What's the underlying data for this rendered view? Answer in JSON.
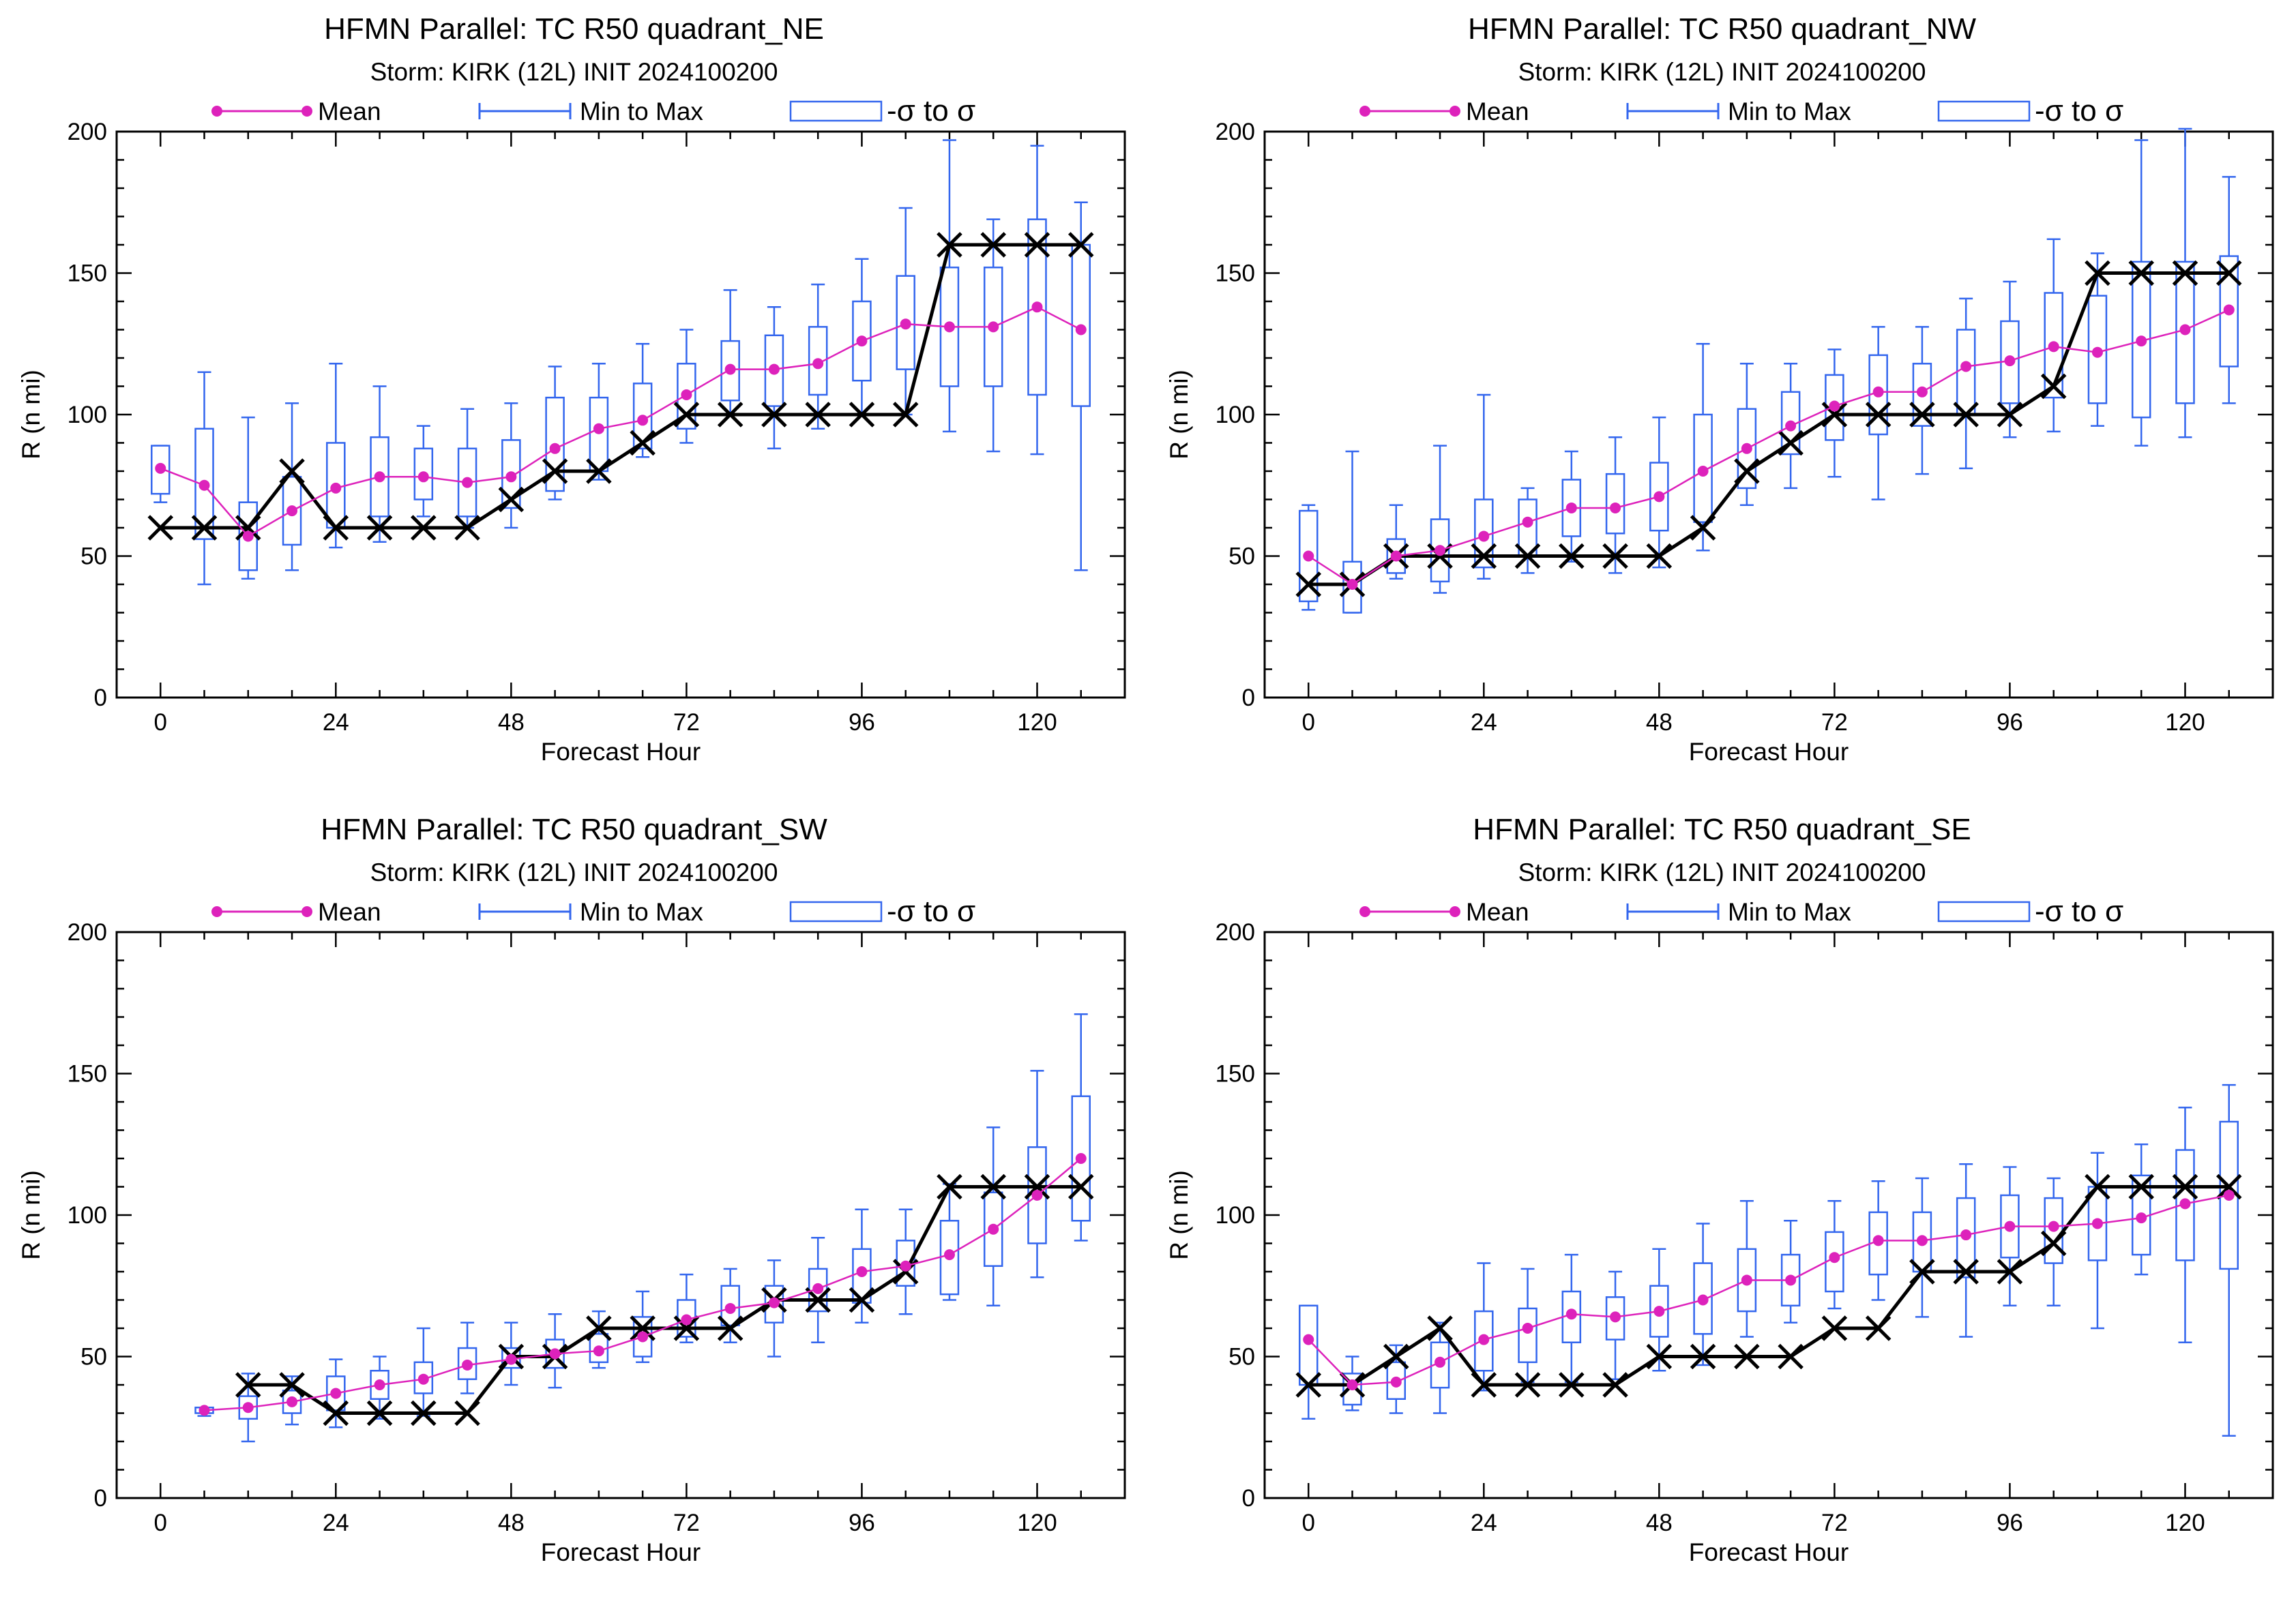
{
  "legend": {
    "mean": "Mean",
    "range": "Min to Max",
    "sigma": "-σ to σ"
  },
  "colors": {
    "mean": "#dd22bb",
    "range": "#3366ee",
    "official": "#000000",
    "axis": "#000000"
  },
  "chart_data": [
    {
      "type": "box",
      "title": "HFMN Parallel: TC  R50 quadrant_NE",
      "subtitle": "Storm: KIRK (12L) INIT 2024100200",
      "xlabel": "Forecast Hour",
      "ylabel": "R (n mi)",
      "xlim": [
        -6,
        132
      ],
      "ylim": [
        0,
        200
      ],
      "xticks": [
        0,
        24,
        48,
        72,
        96,
        120
      ],
      "yticks": [
        0,
        50,
        100,
        150,
        200
      ],
      "x": [
        0,
        6,
        12,
        18,
        24,
        30,
        36,
        42,
        48,
        54,
        60,
        66,
        72,
        78,
        84,
        90,
        96,
        102,
        108,
        114,
        120,
        126
      ],
      "mean": [
        81,
        75,
        57,
        66,
        74,
        78,
        78,
        76,
        78,
        88,
        95,
        98,
        107,
        116,
        116,
        118,
        126,
        132,
        131,
        131,
        138,
        130
      ],
      "min": [
        69,
        40,
        42,
        45,
        53,
        55,
        64,
        60,
        60,
        70,
        77,
        85,
        90,
        100,
        88,
        95,
        100,
        100,
        94,
        87,
        86,
        45
      ],
      "max": [
        89,
        115,
        99,
        104,
        118,
        110,
        96,
        102,
        104,
        117,
        118,
        125,
        130,
        144,
        138,
        146,
        155,
        173,
        197,
        169,
        195,
        175
      ],
      "sd_low": [
        72,
        56,
        45,
        54,
        60,
        64,
        70,
        64,
        67,
        73,
        80,
        88,
        95,
        105,
        103,
        107,
        112,
        116,
        110,
        110,
        107,
        103
      ],
      "sd_high": [
        89,
        95,
        69,
        78,
        90,
        92,
        88,
        88,
        91,
        106,
        106,
        111,
        118,
        126,
        128,
        131,
        140,
        149,
        152,
        152,
        169,
        160
      ],
      "official": [
        60,
        60,
        60,
        80,
        60,
        60,
        60,
        60,
        70,
        80,
        80,
        90,
        100,
        100,
        100,
        100,
        100,
        100,
        160,
        160,
        160,
        160
      ]
    },
    {
      "type": "box",
      "title": "HFMN Parallel: TC  R50 quadrant_NW",
      "subtitle": "Storm: KIRK (12L) INIT 2024100200",
      "xlabel": "Forecast Hour",
      "ylabel": "R (n mi)",
      "xlim": [
        -6,
        132
      ],
      "ylim": [
        0,
        200
      ],
      "xticks": [
        0,
        24,
        48,
        72,
        96,
        120
      ],
      "yticks": [
        0,
        50,
        100,
        150,
        200
      ],
      "x": [
        0,
        6,
        12,
        18,
        24,
        30,
        36,
        42,
        48,
        54,
        60,
        66,
        72,
        78,
        84,
        90,
        96,
        102,
        108,
        114,
        120,
        126
      ],
      "mean": [
        50,
        40,
        50,
        52,
        57,
        62,
        67,
        67,
        71,
        80,
        88,
        96,
        103,
        108,
        108,
        117,
        119,
        124,
        122,
        126,
        130,
        137
      ],
      "min": [
        31,
        30,
        42,
        37,
        42,
        44,
        48,
        44,
        46,
        52,
        68,
        74,
        78,
        70,
        79,
        81,
        92,
        94,
        96,
        89,
        92,
        104
      ],
      "max": [
        68,
        87,
        68,
        89,
        107,
        74,
        87,
        92,
        99,
        125,
        118,
        118,
        123,
        131,
        131,
        141,
        147,
        162,
        157,
        197,
        201,
        184
      ],
      "sd_low": [
        34,
        30,
        44,
        41,
        46,
        50,
        57,
        58,
        59,
        62,
        74,
        86,
        91,
        93,
        96,
        100,
        104,
        106,
        104,
        99,
        104,
        117
      ],
      "sd_high": [
        66,
        48,
        56,
        63,
        70,
        70,
        77,
        79,
        83,
        100,
        102,
        108,
        114,
        121,
        118,
        130,
        133,
        143,
        142,
        154,
        154,
        156
      ],
      "official": [
        40,
        40,
        50,
        50,
        50,
        50,
        50,
        50,
        50,
        60,
        80,
        90,
        100,
        100,
        100,
        100,
        100,
        110,
        150,
        150,
        150,
        150
      ]
    },
    {
      "type": "box",
      "title": "HFMN Parallel: TC  R50 quadrant_SW",
      "subtitle": "Storm: KIRK (12L) INIT 2024100200",
      "xlabel": "Forecast Hour",
      "ylabel": "R (n mi)",
      "xlim": [
        -6,
        132
      ],
      "ylim": [
        0,
        200
      ],
      "xticks": [
        0,
        24,
        48,
        72,
        96,
        120
      ],
      "yticks": [
        0,
        50,
        100,
        150,
        200
      ],
      "x": [
        6,
        12,
        18,
        24,
        30,
        36,
        42,
        48,
        54,
        60,
        66,
        72,
        78,
        84,
        90,
        96,
        102,
        108,
        114,
        120,
        126
      ],
      "mean": [
        31,
        32,
        34,
        37,
        40,
        42,
        47,
        49,
        51,
        52,
        57,
        63,
        67,
        69,
        74,
        80,
        82,
        86,
        95,
        107,
        120
      ],
      "min": [
        29,
        20,
        26,
        25,
        28,
        29,
        37,
        40,
        39,
        46,
        48,
        55,
        55,
        50,
        55,
        62,
        65,
        70,
        68,
        78,
        91
      ],
      "max": [
        32,
        44,
        43,
        49,
        50,
        60,
        62,
        62,
        65,
        66,
        73,
        79,
        81,
        84,
        92,
        102,
        102,
        111,
        131,
        151,
        171
      ],
      "sd_low": [
        30,
        28,
        30,
        31,
        35,
        37,
        42,
        46,
        46,
        48,
        50,
        57,
        61,
        62,
        66,
        69,
        75,
        72,
        82,
        90,
        98
      ],
      "sd_high": [
        32,
        36,
        38,
        43,
        45,
        48,
        53,
        53,
        56,
        58,
        64,
        70,
        75,
        75,
        81,
        88,
        91,
        98,
        108,
        124,
        142
      ],
      "official": [
        null,
        40,
        40,
        30,
        30,
        30,
        30,
        50,
        50,
        60,
        60,
        60,
        60,
        70,
        70,
        70,
        80,
        110,
        110,
        110,
        110
      ]
    },
    {
      "type": "box",
      "title": "HFMN Parallel: TC  R50 quadrant_SE",
      "subtitle": "Storm: KIRK (12L) INIT 2024100200",
      "xlabel": "Forecast Hour",
      "ylabel": "R (n mi)",
      "xlim": [
        -6,
        132
      ],
      "ylim": [
        0,
        200
      ],
      "xticks": [
        0,
        24,
        48,
        72,
        96,
        120
      ],
      "yticks": [
        0,
        50,
        100,
        150,
        200
      ],
      "x": [
        0,
        6,
        12,
        18,
        24,
        30,
        36,
        42,
        48,
        54,
        60,
        66,
        72,
        78,
        84,
        90,
        96,
        102,
        108,
        114,
        120,
        126
      ],
      "mean": [
        56,
        40,
        41,
        48,
        56,
        60,
        65,
        64,
        66,
        70,
        77,
        77,
        85,
        91,
        91,
        93,
        96,
        96,
        97,
        99,
        104,
        107
      ],
      "min": [
        28,
        31,
        30,
        30,
        38,
        41,
        41,
        42,
        45,
        47,
        57,
        62,
        67,
        70,
        64,
        57,
        68,
        68,
        60,
        79,
        55,
        22
      ],
      "max": [
        68,
        50,
        54,
        62,
        83,
        81,
        86,
        80,
        88,
        97,
        105,
        98,
        105,
        112,
        113,
        118,
        117,
        113,
        122,
        125,
        138,
        146
      ],
      "sd_low": [
        40,
        33,
        35,
        39,
        45,
        48,
        55,
        56,
        57,
        58,
        66,
        68,
        73,
        79,
        80,
        78,
        85,
        83,
        84,
        86,
        84,
        81
      ],
      "sd_high": [
        68,
        44,
        48,
        55,
        66,
        67,
        73,
        71,
        75,
        83,
        88,
        86,
        94,
        101,
        101,
        106,
        107,
        106,
        110,
        114,
        123,
        133
      ],
      "official": [
        40,
        40,
        50,
        60,
        40,
        40,
        40,
        40,
        50,
        50,
        50,
        50,
        60,
        60,
        80,
        80,
        80,
        90,
        110,
        110,
        110,
        110
      ]
    }
  ]
}
